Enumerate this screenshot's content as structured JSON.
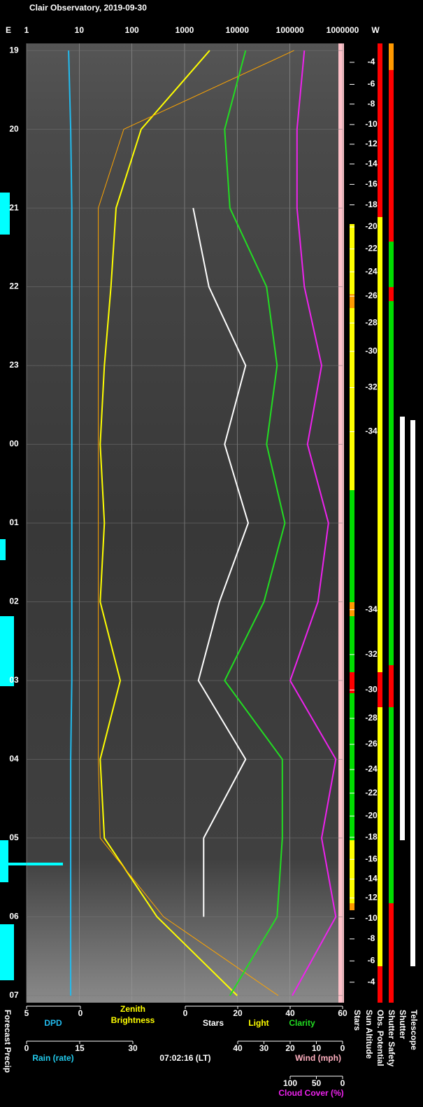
{
  "chart_data": {
    "type": "line",
    "title": "Clair Observatory, 2019-09-30",
    "east_label": "E",
    "west_label": "W",
    "xscale": "log",
    "xlim": [
      1,
      1000000
    ],
    "xticks": [
      1,
      10,
      100,
      1000,
      10000,
      100000,
      1000000
    ],
    "ylim": [
      -0.09,
      12.09
    ],
    "yticks": [
      {
        "value": 0,
        "label": "19"
      },
      {
        "value": 1,
        "label": "20"
      },
      {
        "value": 2,
        "label": "21"
      },
      {
        "value": 3,
        "label": "22"
      },
      {
        "value": 4,
        "label": "23"
      },
      {
        "value": 5,
        "label": "00"
      },
      {
        "value": 6,
        "label": "01"
      },
      {
        "value": 7,
        "label": "02"
      },
      {
        "value": 8,
        "label": "03"
      },
      {
        "value": 9,
        "label": "04"
      },
      {
        "value": 10,
        "label": "05"
      },
      {
        "value": 11,
        "label": "06"
      },
      {
        "value": 12,
        "label": "07"
      }
    ],
    "time": [
      0,
      1,
      2,
      3,
      4,
      5,
      6,
      7,
      8,
      9,
      10,
      11,
      12
    ],
    "x2lim": [
      0,
      60
    ],
    "x2ticks": [
      0,
      20,
      40,
      60
    ],
    "x3lim": [
      100,
      0
    ],
    "x3ticks": [
      100,
      50,
      0
    ],
    "dpdlim": [
      5,
      0
    ],
    "dpdticks": [
      5,
      0
    ],
    "rainlim": [
      0,
      30
    ],
    "rainticks": [
      0,
      15,
      30
    ],
    "windlim": [
      40,
      0
    ],
    "windticks": [
      40,
      30,
      20,
      10,
      0
    ],
    "series": [
      {
        "name": "Zenith Brightness",
        "color": "#ffff00",
        "values": [
          3000,
          150,
          50,
          40,
          30,
          25,
          30,
          25,
          60,
          25,
          30,
          300,
          10000
        ]
      },
      {
        "name": "Light",
        "color": "#ffa500",
        "values": [
          120000,
          70,
          23,
          23,
          23,
          23,
          23,
          23,
          23,
          23,
          25,
          400,
          60000
        ]
      },
      {
        "name": "Stars",
        "color": "#ffffff",
        "axis": "x2",
        "values": [
          null,
          null,
          3,
          9,
          23,
          15,
          24,
          13,
          5,
          23,
          7,
          7,
          null
        ]
      },
      {
        "name": "Clarity",
        "color": "#22dd22",
        "axis": "x2",
        "values": [
          23,
          15,
          17,
          31,
          35,
          31,
          38,
          30,
          15,
          37,
          37,
          35,
          17
        ]
      },
      {
        "name": "Cloud Cover (%)",
        "color": "#ee22ee",
        "axis": "x3",
        "values": [
          73,
          87,
          87,
          73,
          40,
          67,
          27,
          47,
          100,
          13,
          40,
          13,
          96
        ]
      },
      {
        "name": "DPD",
        "color": "#22bbee",
        "axis": "dpd",
        "values": [
          1.1,
          0.9,
          0.8,
          0.8,
          0.8,
          0.8,
          0.8,
          0.8,
          0.8,
          0.9,
          0.9,
          0.9,
          0.9
        ]
      }
    ],
    "zenith_label": "Zenith Brightness",
    "rain_label": "Rain (rate)",
    "wind_label": "Wind (mph)",
    "timestamp": "07:02:16 (LT)",
    "sun_altitude": {
      "label": "Sun Altitude",
      "values": [
        -4,
        -6,
        -8,
        -10,
        -12,
        -14,
        -16,
        -18,
        -20,
        -22,
        -24,
        -26,
        -28,
        -30,
        -32,
        -34,
        -34,
        -32,
        -30,
        -28,
        -26,
        -24,
        -22,
        -20,
        -18,
        -16,
        -14,
        -12,
        -10,
        -8,
        -6,
        -4
      ],
      "hours": [
        0.15,
        0.43,
        0.68,
        0.94,
        1.19,
        1.44,
        1.7,
        1.96,
        2.24,
        2.52,
        2.81,
        3.12,
        3.46,
        3.82,
        4.28,
        4.84,
        7.1,
        7.67,
        8.12,
        8.48,
        8.81,
        9.13,
        9.43,
        9.72,
        9.99,
        10.27,
        10.52,
        10.76,
        11.02,
        11.28,
        11.56,
        11.83
      ]
    },
    "status_labels": [
      "Stars",
      "Obs. Potential",
      "Shutter Safety",
      "Shutter",
      "Telescope"
    ],
    "precip_label": "Forecast Precip"
  }
}
